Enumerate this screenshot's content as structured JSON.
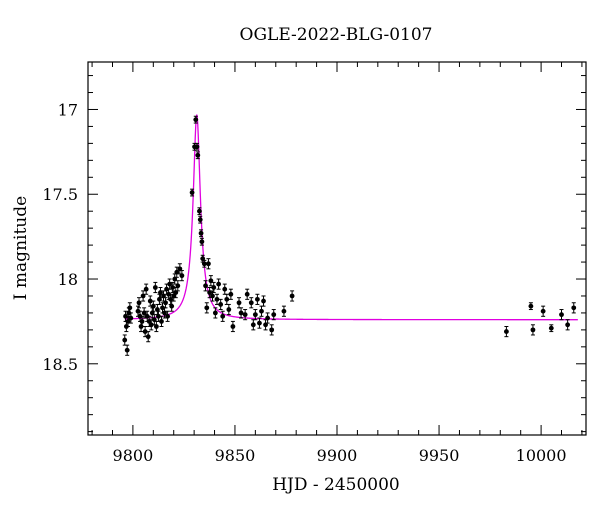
{
  "chart_data": {
    "type": "scatter",
    "title": "OGLE-2022-BLG-0107",
    "xlabel": "HJD - 2450000",
    "ylabel": "I magnitude",
    "xlim": [
      9778,
      10022
    ],
    "ylim": [
      18.92,
      16.72
    ],
    "y_inverted": true,
    "grid": false,
    "x_ticks": [
      9800,
      9850,
      9900,
      9950,
      10000
    ],
    "y_ticks": [
      17,
      17.5,
      18,
      18.5
    ],
    "colors": {
      "data": "#000000",
      "model": "#e000e0",
      "axis": "#000000"
    },
    "model": {
      "name": "",
      "type": "line",
      "t0": 9831.3,
      "baseline_mag": 18.24,
      "peak_mag": 17.03,
      "tE": 5.2,
      "x_range": [
        9796,
        10018
      ]
    },
    "series": [
      {
        "name": "",
        "type": "scatter_errorbar",
        "points": [
          [
            9796.0,
            18.36,
            0.03
          ],
          [
            9796.4,
            18.22,
            0.03
          ],
          [
            9796.8,
            18.28,
            0.03
          ],
          [
            9797.2,
            18.42,
            0.03
          ],
          [
            9797.6,
            18.25,
            0.03
          ],
          [
            9798.0,
            18.2,
            0.03
          ],
          [
            9798.5,
            18.17,
            0.03
          ],
          [
            9799.0,
            18.23,
            0.03
          ],
          [
            9802.5,
            18.19,
            0.03
          ],
          [
            9803.0,
            18.14,
            0.03
          ],
          [
            9803.5,
            18.22,
            0.03
          ],
          [
            9804.0,
            18.28,
            0.03
          ],
          [
            9804.5,
            18.25,
            0.03
          ],
          [
            9805.0,
            18.1,
            0.03
          ],
          [
            9805.5,
            18.2,
            0.03
          ],
          [
            9806.0,
            18.31,
            0.03
          ],
          [
            9806.5,
            18.06,
            0.03
          ],
          [
            9807.0,
            18.22,
            0.03
          ],
          [
            9807.5,
            18.34,
            0.03
          ],
          [
            9808.0,
            18.25,
            0.03
          ],
          [
            9808.5,
            18.13,
            0.03
          ],
          [
            9809.0,
            18.27,
            0.03
          ],
          [
            9809.5,
            18.2,
            0.03
          ],
          [
            9810.0,
            18.16,
            0.03
          ],
          [
            9810.5,
            18.24,
            0.03
          ],
          [
            9811.0,
            18.05,
            0.03
          ],
          [
            9811.5,
            18.28,
            0.03
          ],
          [
            9812.0,
            18.18,
            0.03
          ],
          [
            9812.5,
            18.22,
            0.03
          ],
          [
            9813.0,
            18.12,
            0.03
          ],
          [
            9813.5,
            18.08,
            0.03
          ],
          [
            9814.0,
            18.25,
            0.03
          ],
          [
            9814.5,
            18.17,
            0.03
          ],
          [
            9815.0,
            18.1,
            0.03
          ],
          [
            9815.5,
            18.2,
            0.03
          ],
          [
            9816.0,
            18.14,
            0.03
          ],
          [
            9816.5,
            18.06,
            0.03
          ],
          [
            9817.0,
            18.22,
            0.03
          ],
          [
            9817.5,
            18.09,
            0.03
          ],
          [
            9818.0,
            18.03,
            0.03
          ],
          [
            9818.5,
            18.12,
            0.03
          ],
          [
            9819.0,
            18.16,
            0.03
          ],
          [
            9819.5,
            18.05,
            0.03
          ],
          [
            9820.0,
            18.1,
            0.03
          ],
          [
            9820.5,
            18.0,
            0.03
          ],
          [
            9821.0,
            18.08,
            0.03
          ],
          [
            9821.5,
            17.96,
            0.03
          ],
          [
            9822.0,
            18.04,
            0.03
          ],
          [
            9823.0,
            17.94,
            0.03
          ],
          [
            9824.0,
            17.98,
            0.03
          ],
          [
            9829.0,
            17.49,
            0.02
          ],
          [
            9830.2,
            17.22,
            0.02
          ],
          [
            9830.8,
            17.06,
            0.02
          ],
          [
            9831.4,
            17.22,
            0.02
          ],
          [
            9831.8,
            17.27,
            0.02
          ],
          [
            9832.6,
            17.6,
            0.02
          ],
          [
            9833.0,
            17.65,
            0.02
          ],
          [
            9833.4,
            17.73,
            0.02
          ],
          [
            9833.8,
            17.78,
            0.02
          ],
          [
            9834.2,
            17.88,
            0.02
          ],
          [
            9835.0,
            17.91,
            0.02
          ],
          [
            9835.6,
            18.04,
            0.03
          ],
          [
            9836.2,
            18.17,
            0.03
          ],
          [
            9837.0,
            17.91,
            0.03
          ],
          [
            9837.6,
            18.08,
            0.03
          ],
          [
            9838.2,
            18.01,
            0.03
          ],
          [
            9839.0,
            18.1,
            0.03
          ],
          [
            9839.6,
            18.05,
            0.03
          ],
          [
            9840.4,
            18.2,
            0.03
          ],
          [
            9841.2,
            18.12,
            0.03
          ],
          [
            9842.0,
            18.03,
            0.03
          ],
          [
            9843.0,
            18.15,
            0.03
          ],
          [
            9844.0,
            18.22,
            0.03
          ],
          [
            9845.0,
            18.06,
            0.03
          ],
          [
            9846.0,
            18.12,
            0.03
          ],
          [
            9847.0,
            18.18,
            0.03
          ],
          [
            9848.0,
            18.09,
            0.03
          ],
          [
            9849.0,
            18.28,
            0.03
          ],
          [
            9852.0,
            18.14,
            0.03
          ],
          [
            9853.0,
            18.2,
            0.03
          ],
          [
            9855.0,
            18.21,
            0.03
          ],
          [
            9856.0,
            18.09,
            0.03
          ],
          [
            9858.0,
            18.14,
            0.03
          ],
          [
            9859.0,
            18.27,
            0.03
          ],
          [
            9860.0,
            18.21,
            0.03
          ],
          [
            9861.0,
            18.12,
            0.03
          ],
          [
            9862.0,
            18.26,
            0.03
          ],
          [
            9863.0,
            18.19,
            0.03
          ],
          [
            9864.0,
            18.13,
            0.03
          ],
          [
            9865.0,
            18.27,
            0.03
          ],
          [
            9866.0,
            18.23,
            0.03
          ],
          [
            9868.0,
            18.3,
            0.03
          ],
          [
            9869.0,
            18.21,
            0.03
          ],
          [
            9874.0,
            18.19,
            0.03
          ],
          [
            9878.0,
            18.1,
            0.03
          ],
          [
            9983.0,
            18.31,
            0.03
          ],
          [
            9995.0,
            18.16,
            0.02
          ],
          [
            9996.0,
            18.3,
            0.03
          ],
          [
            10001.0,
            18.19,
            0.03
          ],
          [
            10005.0,
            18.29,
            0.02
          ],
          [
            10010.0,
            18.21,
            0.03
          ],
          [
            10013.0,
            18.27,
            0.03
          ],
          [
            10016.0,
            18.17,
            0.03
          ]
        ]
      }
    ]
  }
}
